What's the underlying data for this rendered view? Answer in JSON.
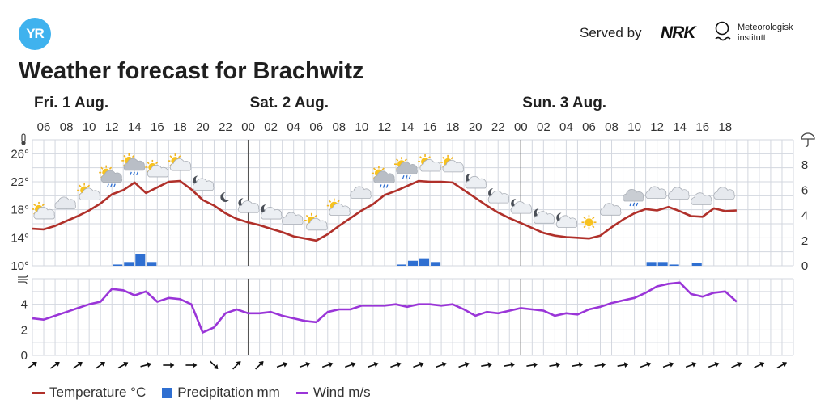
{
  "header": {
    "logo_text": "YR",
    "served_by": "Served by",
    "nrk": "NRK",
    "met_line1": "Meteorologisk",
    "met_line2": "institutt",
    "title": "Weather forecast for Brachwitz"
  },
  "colors": {
    "temperature": "#b0302a",
    "precipitation": "#2f6fd1",
    "wind": "#9a35d8",
    "grid": "#d3d7df",
    "day_divider": "#555555",
    "axis_text": "#333333"
  },
  "legend": {
    "temperature": "Temperature °C",
    "precipitation": "Precipitation mm",
    "wind": "Wind m/s"
  },
  "chart_data": {
    "type": "line",
    "days": [
      {
        "label": "Fri. 1 Aug.",
        "start_hour": 5
      },
      {
        "label": "Sat. 2 Aug.",
        "start_hour": 24
      },
      {
        "label": "Sun. 3 Aug.",
        "start_hour": 48
      }
    ],
    "hour_range": [
      5,
      72
    ],
    "hour_labels": [
      "06",
      "08",
      "10",
      "12",
      "14",
      "16",
      "18",
      "20",
      "22",
      "00",
      "02",
      "04",
      "06",
      "08",
      "10",
      "12",
      "14",
      "16",
      "18",
      "20",
      "22",
      "00",
      "02",
      "04",
      "06",
      "08",
      "10",
      "12",
      "14",
      "16",
      "18"
    ],
    "temperature": {
      "ylabels": [
        "26°",
        "22°",
        "18°",
        "14°",
        "10°"
      ],
      "ylim": [
        10,
        28
      ],
      "points": [
        [
          5,
          15.3
        ],
        [
          6,
          15.2
        ],
        [
          7,
          15.7
        ],
        [
          8,
          16.4
        ],
        [
          9,
          17.1
        ],
        [
          10,
          17.9
        ],
        [
          11,
          18.9
        ],
        [
          12,
          20.2
        ],
        [
          13,
          20.8
        ],
        [
          14,
          21.9
        ],
        [
          15,
          20.4
        ],
        [
          16,
          21.2
        ],
        [
          17,
          22.0
        ],
        [
          18,
          22.1
        ],
        [
          19,
          20.9
        ],
        [
          20,
          19.4
        ],
        [
          21,
          18.6
        ],
        [
          22,
          17.5
        ],
        [
          23,
          16.7
        ],
        [
          24,
          16.2
        ],
        [
          25,
          15.8
        ],
        [
          26,
          15.3
        ],
        [
          27,
          14.8
        ],
        [
          28,
          14.2
        ],
        [
          29,
          13.9
        ],
        [
          30,
          13.6
        ],
        [
          31,
          14.5
        ],
        [
          32,
          15.7
        ],
        [
          33,
          16.8
        ],
        [
          34,
          17.9
        ],
        [
          35,
          18.8
        ],
        [
          36,
          20.1
        ],
        [
          37,
          20.7
        ],
        [
          38,
          21.4
        ],
        [
          39,
          22.1
        ],
        [
          40,
          22.0
        ],
        [
          41,
          22.0
        ],
        [
          42,
          21.9
        ],
        [
          43,
          20.8
        ],
        [
          44,
          19.7
        ],
        [
          45,
          18.6
        ],
        [
          46,
          17.6
        ],
        [
          47,
          16.8
        ],
        [
          48,
          16.1
        ],
        [
          49,
          15.4
        ],
        [
          50,
          14.7
        ],
        [
          51,
          14.3
        ],
        [
          52,
          14.1
        ],
        [
          53,
          14.0
        ],
        [
          54,
          13.9
        ],
        [
          55,
          14.3
        ],
        [
          56,
          15.5
        ],
        [
          57,
          16.6
        ],
        [
          58,
          17.5
        ],
        [
          59,
          18.1
        ],
        [
          60,
          17.9
        ],
        [
          61,
          18.4
        ],
        [
          62,
          17.8
        ],
        [
          63,
          17.1
        ],
        [
          64,
          17.0
        ],
        [
          65,
          18.2
        ],
        [
          66,
          17.8
        ],
        [
          67,
          17.9
        ]
      ]
    },
    "precipitation": {
      "ylabels": [
        "8",
        "6",
        "4",
        "2",
        "0"
      ],
      "ylim": [
        0,
        10
      ],
      "bars": [
        [
          12,
          0.1
        ],
        [
          13,
          0.3
        ],
        [
          14,
          0.9
        ],
        [
          15,
          0.3
        ],
        [
          37,
          0.1
        ],
        [
          38,
          0.4
        ],
        [
          39,
          0.6
        ],
        [
          40,
          0.3
        ],
        [
          59,
          0.3
        ],
        [
          60,
          0.3
        ],
        [
          61,
          0.1
        ],
        [
          63,
          0.2
        ]
      ]
    },
    "wind": {
      "ylabels": [
        "4",
        "2",
        "0"
      ],
      "ylim": [
        0,
        6
      ],
      "points": [
        [
          5,
          2.9
        ],
        [
          6,
          2.8
        ],
        [
          7,
          3.1
        ],
        [
          8,
          3.4
        ],
        [
          9,
          3.7
        ],
        [
          10,
          4.0
        ],
        [
          11,
          4.2
        ],
        [
          12,
          5.2
        ],
        [
          13,
          5.1
        ],
        [
          14,
          4.7
        ],
        [
          15,
          5.0
        ],
        [
          16,
          4.2
        ],
        [
          17,
          4.5
        ],
        [
          18,
          4.4
        ],
        [
          19,
          4.0
        ],
        [
          20,
          1.8
        ],
        [
          21,
          2.2
        ],
        [
          22,
          3.3
        ],
        [
          23,
          3.6
        ],
        [
          24,
          3.3
        ],
        [
          25,
          3.3
        ],
        [
          26,
          3.4
        ],
        [
          27,
          3.1
        ],
        [
          28,
          2.9
        ],
        [
          29,
          2.7
        ],
        [
          30,
          2.6
        ],
        [
          31,
          3.4
        ],
        [
          32,
          3.6
        ],
        [
          33,
          3.6
        ],
        [
          34,
          3.9
        ],
        [
          35,
          3.9
        ],
        [
          36,
          3.9
        ],
        [
          37,
          4.0
        ],
        [
          38,
          3.8
        ],
        [
          39,
          4.0
        ],
        [
          40,
          4.0
        ],
        [
          41,
          3.9
        ],
        [
          42,
          4.0
        ],
        [
          43,
          3.6
        ],
        [
          44,
          3.1
        ],
        [
          45,
          3.4
        ],
        [
          46,
          3.3
        ],
        [
          47,
          3.5
        ],
        [
          48,
          3.7
        ],
        [
          49,
          3.6
        ],
        [
          50,
          3.5
        ],
        [
          51,
          3.1
        ],
        [
          52,
          3.3
        ],
        [
          53,
          3.2
        ],
        [
          54,
          3.6
        ],
        [
          55,
          3.8
        ],
        [
          56,
          4.1
        ],
        [
          57,
          4.3
        ],
        [
          58,
          4.5
        ],
        [
          59,
          4.9
        ],
        [
          60,
          5.4
        ],
        [
          61,
          5.6
        ],
        [
          62,
          5.7
        ],
        [
          63,
          4.8
        ],
        [
          64,
          4.6
        ],
        [
          65,
          4.9
        ],
        [
          66,
          5.0
        ],
        [
          67,
          4.2
        ]
      ]
    },
    "weather_icons": [
      {
        "hour": 6,
        "icon": "partly-cloudy-day"
      },
      {
        "hour": 8,
        "icon": "cloudy"
      },
      {
        "hour": 10,
        "icon": "partly-cloudy-day"
      },
      {
        "hour": 12,
        "icon": "light-rain-showers"
      },
      {
        "hour": 14,
        "icon": "light-rain-showers"
      },
      {
        "hour": 16,
        "icon": "partly-cloudy-day"
      },
      {
        "hour": 18,
        "icon": "partly-cloudy-day"
      },
      {
        "hour": 20,
        "icon": "partly-cloudy-night"
      },
      {
        "hour": 22,
        "icon": "clear-night"
      },
      {
        "hour": 24,
        "icon": "partly-cloudy-night"
      },
      {
        "hour": 26,
        "icon": "partly-cloudy-night"
      },
      {
        "hour": 28,
        "icon": "cloudy"
      },
      {
        "hour": 30,
        "icon": "partly-cloudy-day"
      },
      {
        "hour": 32,
        "icon": "partly-cloudy-day"
      },
      {
        "hour": 34,
        "icon": "cloudy"
      },
      {
        "hour": 36,
        "icon": "light-rain-showers"
      },
      {
        "hour": 38,
        "icon": "light-rain-showers"
      },
      {
        "hour": 40,
        "icon": "partly-cloudy-day"
      },
      {
        "hour": 42,
        "icon": "partly-cloudy-day"
      },
      {
        "hour": 44,
        "icon": "partly-cloudy-night"
      },
      {
        "hour": 46,
        "icon": "partly-cloudy-night"
      },
      {
        "hour": 48,
        "icon": "partly-cloudy-night"
      },
      {
        "hour": 50,
        "icon": "partly-cloudy-night"
      },
      {
        "hour": 52,
        "icon": "partly-cloudy-night"
      },
      {
        "hour": 54,
        "icon": "clear-sky-day"
      },
      {
        "hour": 56,
        "icon": "cloudy"
      },
      {
        "hour": 58,
        "icon": "light-rain"
      },
      {
        "hour": 60,
        "icon": "cloudy"
      },
      {
        "hour": 62,
        "icon": "cloudy"
      },
      {
        "hour": 64,
        "icon": "cloudy"
      },
      {
        "hour": 66,
        "icon": "cloudy"
      }
    ],
    "wind_directions": [
      {
        "hour": 5,
        "deg": 235
      },
      {
        "hour": 7,
        "deg": 235
      },
      {
        "hour": 9,
        "deg": 235
      },
      {
        "hour": 11,
        "deg": 235
      },
      {
        "hour": 13,
        "deg": 240
      },
      {
        "hour": 15,
        "deg": 255
      },
      {
        "hour": 17,
        "deg": 270
      },
      {
        "hour": 19,
        "deg": 270
      },
      {
        "hour": 21,
        "deg": 315
      },
      {
        "hour": 23,
        "deg": 225
      },
      {
        "hour": 25,
        "deg": 225
      },
      {
        "hour": 27,
        "deg": 250
      },
      {
        "hour": 29,
        "deg": 250
      },
      {
        "hour": 31,
        "deg": 250
      },
      {
        "hour": 33,
        "deg": 250
      },
      {
        "hour": 35,
        "deg": 250
      },
      {
        "hour": 37,
        "deg": 250
      },
      {
        "hour": 39,
        "deg": 250
      },
      {
        "hour": 41,
        "deg": 250
      },
      {
        "hour": 43,
        "deg": 250
      },
      {
        "hour": 45,
        "deg": 260
      },
      {
        "hour": 47,
        "deg": 260
      },
      {
        "hour": 49,
        "deg": 260
      },
      {
        "hour": 51,
        "deg": 260
      },
      {
        "hour": 53,
        "deg": 260
      },
      {
        "hour": 55,
        "deg": 260
      },
      {
        "hour": 57,
        "deg": 260
      },
      {
        "hour": 59,
        "deg": 250
      },
      {
        "hour": 61,
        "deg": 250
      },
      {
        "hour": 63,
        "deg": 250
      },
      {
        "hour": 65,
        "deg": 250
      },
      {
        "hour": 67,
        "deg": 245
      },
      {
        "hour": 69,
        "deg": 245
      },
      {
        "hour": 71,
        "deg": 240
      }
    ]
  }
}
